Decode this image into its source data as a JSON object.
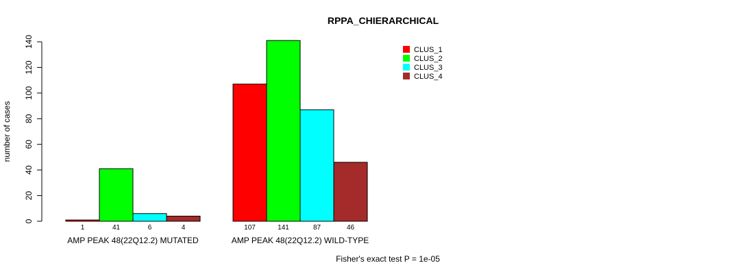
{
  "chart_data": {
    "type": "bar",
    "title": "RPPA_CHIERARCHICAL",
    "ylabel": "number of cases",
    "xlabel": "",
    "ylim": [
      0,
      140
    ],
    "yticks": [
      0,
      20,
      40,
      60,
      80,
      100,
      120,
      140
    ],
    "categories": [
      "AMP PEAK 48(22Q12.2) MUTATED",
      "AMP PEAK 48(22Q12.2) WILD-TYPE"
    ],
    "series": [
      {
        "name": "CLUS_1",
        "color": "#ff0000",
        "values": [
          1,
          107
        ]
      },
      {
        "name": "CLUS_2",
        "color": "#00ff00",
        "values": [
          41,
          141
        ]
      },
      {
        "name": "CLUS_3",
        "color": "#00ffff",
        "values": [
          6,
          87
        ]
      },
      {
        "name": "CLUS_4",
        "color": "#a52a2a",
        "values": [
          4,
          46
        ]
      }
    ],
    "legend_position": "top-right",
    "annotation": "Fisher's exact test P = 1e-05",
    "grid": false
  }
}
